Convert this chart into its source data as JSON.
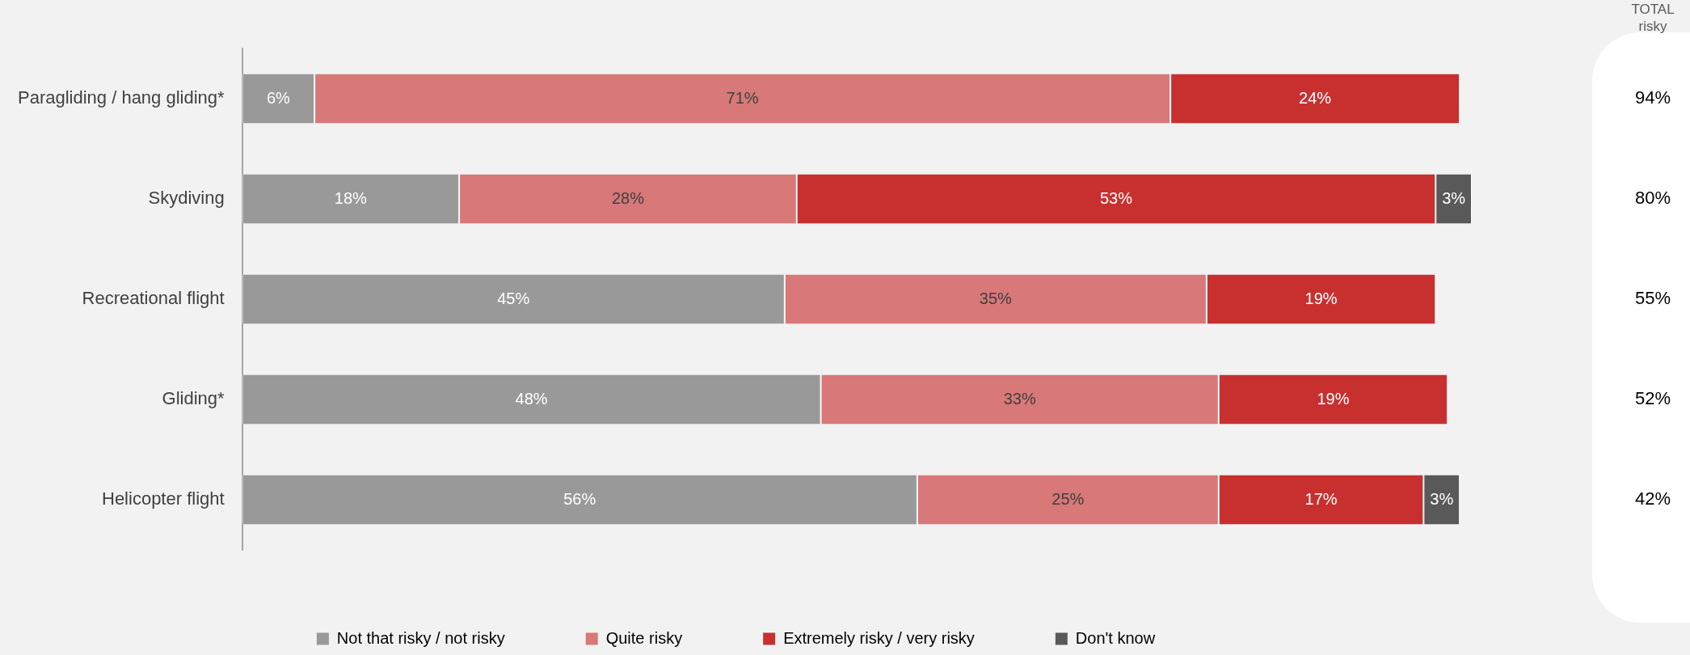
{
  "chart_data": {
    "type": "bar",
    "orientation": "horizontal",
    "stacked": true,
    "legend": "bottom",
    "grid": false,
    "tick_labels": "y",
    "categories": [
      "Paragliding / hang gliding*",
      "Skydiving",
      "Recreational flight",
      "Gliding*",
      "Helicopter flight"
    ],
    "series": [
      {
        "name": "Not that risky / not risky",
        "color": "#999999",
        "values": [
          6,
          18,
          45,
          48,
          56
        ],
        "value_labels": [
          "6%",
          "18%",
          "45%",
          "48%",
          "56%"
        ]
      },
      {
        "name": "Quite risky",
        "color": "#d87878",
        "values": [
          71,
          28,
          35,
          33,
          25
        ],
        "value_labels": [
          "71%",
          "28%",
          "35%",
          "33%",
          "25%"
        ]
      },
      {
        "name": "Extremely risky / very risky",
        "color": "#c83030",
        "values": [
          24,
          53,
          19,
          19,
          17
        ],
        "value_labels": [
          "24%",
          "53%",
          "19%",
          "19%",
          "17%"
        ]
      },
      {
        "name": "Don't know",
        "color": "#595959",
        "values": [
          null,
          3,
          null,
          null,
          3
        ],
        "value_labels": [
          null,
          "3%",
          null,
          null,
          "3%"
        ]
      }
    ],
    "annotations": [
      "TOTAL risky",
      "94%",
      "80%",
      "55%",
      "52%",
      "42%"
    ]
  }
}
